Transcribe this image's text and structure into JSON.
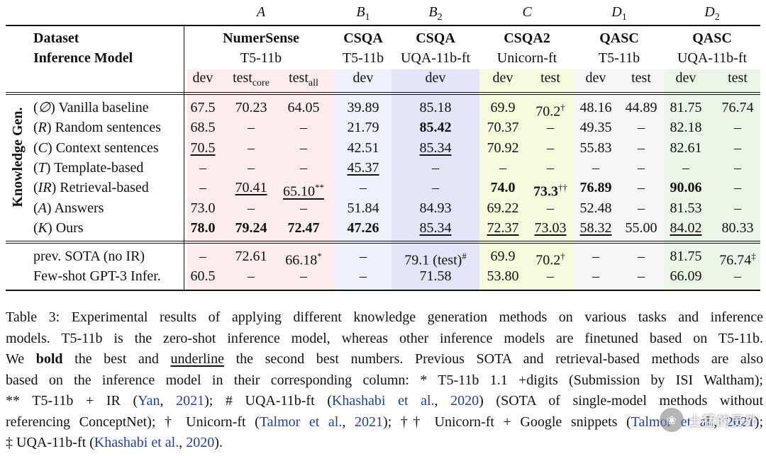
{
  "group_letters": [
    {
      "key": "A",
      "main": "A",
      "sub": ""
    },
    {
      "key": "B1",
      "main": "B",
      "sub": "1"
    },
    {
      "key": "B2",
      "main": "B",
      "sub": "2"
    },
    {
      "key": "C",
      "main": "C",
      "sub": ""
    },
    {
      "key": "D1",
      "main": "D",
      "sub": "1"
    },
    {
      "key": "D2",
      "main": "D",
      "sub": "2"
    }
  ],
  "header": {
    "dataset_label": "Dataset",
    "model_label": "Inference Model",
    "datasets": [
      "NumerSense",
      "CSQA",
      "CSQA",
      "CSQA2",
      "QASC",
      "QASC"
    ],
    "models": [
      "T5-11b",
      "T5-11b",
      "UQA-11b-ft",
      "Unicorn-ft",
      "T5-11b",
      "UQA-11b-ft"
    ],
    "splits": [
      {
        "main": "dev",
        "sub": ""
      },
      {
        "main": "test",
        "sub": "core"
      },
      {
        "main": "test",
        "sub": "all"
      },
      {
        "main": "dev",
        "sub": ""
      },
      {
        "main": "dev",
        "sub": ""
      },
      {
        "main": "dev",
        "sub": ""
      },
      {
        "main": "test",
        "sub": ""
      },
      {
        "main": "dev",
        "sub": ""
      },
      {
        "main": "test",
        "sub": ""
      },
      {
        "main": "dev",
        "sub": ""
      },
      {
        "main": "test",
        "sub": ""
      }
    ]
  },
  "side_label": "Knowledge Gen.",
  "knowledge_rows": [
    {
      "sym": "∅",
      "label": "Vanilla baseline",
      "cells": [
        "67.5",
        "70.23",
        "64.05",
        "39.89",
        "85.18",
        "69.9",
        "70.2",
        "48.16",
        "44.89",
        "81.75",
        "76.74"
      ],
      "sups": [
        "",
        "",
        "",
        "",
        "",
        "",
        "†",
        "",
        "",
        "",
        ""
      ]
    },
    {
      "sym": "R",
      "label": "Random sentences",
      "cells": [
        "68.5",
        "–",
        "–",
        "21.79",
        "85.42",
        "70.37",
        "–",
        "49.35",
        "–",
        "82.18",
        "–"
      ],
      "sups": [
        "",
        "",
        "",
        "",
        "",
        "",
        "",
        "",
        "",
        "",
        ""
      ]
    },
    {
      "sym": "C",
      "label": "Context sentences",
      "cells": [
        "70.5",
        "–",
        "–",
        "42.51",
        "85.34",
        "70.92",
        "–",
        "55.83",
        "–",
        "82.61",
        "–"
      ],
      "sups": [
        "",
        "",
        "",
        "",
        "",
        "",
        "",
        "",
        "",
        "",
        ""
      ]
    },
    {
      "sym": "T",
      "label": "Template-based",
      "cells": [
        "–",
        "–",
        "–",
        "45.37",
        "–",
        "–",
        "–",
        "–",
        "–",
        "–",
        "–"
      ],
      "sups": [
        "",
        "",
        "",
        "",
        "",
        "",
        "",
        "",
        "",
        "",
        ""
      ]
    },
    {
      "sym": "IR",
      "label": "Retrieval-based",
      "cells": [
        "–",
        "70.41",
        "65.10",
        "–",
        "–",
        "74.0",
        "73.3",
        "76.89",
        "–",
        "90.06",
        "–"
      ],
      "sups": [
        "",
        "",
        "**",
        "",
        "",
        "",
        "††",
        "",
        "",
        "",
        ""
      ]
    },
    {
      "sym": "A",
      "label": "Answers",
      "cells": [
        "73.0",
        "–",
        "–",
        "51.84",
        "84.93",
        "69.22",
        "–",
        "52.48",
        "–",
        "81.53",
        "–"
      ],
      "sups": [
        "",
        "",
        "",
        "",
        "",
        "",
        "",
        "",
        "",
        "",
        ""
      ]
    },
    {
      "sym": "K",
      "label": "Ours",
      "cells": [
        "78.0",
        "79.24",
        "72.47",
        "47.26",
        "85.34",
        "72.37",
        "73.03",
        "58.32",
        "55.00",
        "84.02",
        "80.33"
      ],
      "sups": [
        "",
        "",
        "",
        "",
        "",
        "",
        "",
        "",
        "",
        "",
        ""
      ]
    }
  ],
  "other_rows": [
    {
      "label": "prev. SOTA (no IR)",
      "cells": [
        "–",
        "72.61",
        "66.18",
        "–",
        "79.1 (test)",
        "69.9",
        "70.2",
        "–",
        "–",
        "81.75",
        "76.74"
      ],
      "sups": [
        "",
        "",
        "*",
        "",
        "#",
        "",
        "†",
        "",
        "",
        "",
        "‡"
      ]
    },
    {
      "label": "Few-shot GPT-3 Infer.",
      "cells": [
        "60.5",
        "–",
        "–",
        "–",
        "71.58",
        "53.80",
        "–",
        "–",
        "–",
        "66.09",
        "–"
      ],
      "sups": [
        "",
        "",
        "",
        "",
        "",
        "",
        "",
        "",
        "",
        "",
        ""
      ]
    }
  ],
  "caption": {
    "l1": "Table 3: Experimental results of applying different knowledge generation methods on various tasks and inference",
    "l2": "models. T5-11b is the zero-shot inference model, whereas other inference models are finetuned based on T5-11b.",
    "l3a": "We",
    "l3b": "bold",
    "l3c": "the best and",
    "l3d": "underline",
    "l3e": "the second best numbers.  Previous SOTA and retrieval-based methods are also",
    "l4": "based on the inference model in their corresponding column: * T5-11b 1.1 +digits (Submission by ISI Waltham);",
    "l5a": "** T5-11b + IR (",
    "l5b": "Yan",
    "l5c": ", ",
    "l5d": "2021",
    "l5e": "); # UQA-11b-ft (",
    "l5f": "Khashabi et al.",
    "l5g": ", ",
    "l5h": "2020",
    "l5i": ") (SOTA of single-model methods without",
    "l6a": "referencing ConceptNet); † Unicorn-ft (",
    "l6b": "Talmor et al.",
    "l6c": ", ",
    "l6d": "2021",
    "l6e": "); †† Unicorn-ft + Google snippets (",
    "l6f": "Talmor et al.",
    "l6g": ", ",
    "l6h": "2021",
    "l6i": ");",
    "l7a": "‡ UQA-11b-ft (",
    "l7b": "Khashabi et al.",
    "l7c": ", ",
    "l7d": "2020",
    "l7e": ")."
  },
  "watermark": {
    "text": "土猛的员外"
  },
  "colors": {
    "A": "#fcecec",
    "B1": "#eef0fb",
    "B2": "#e2e4f7",
    "C": "#f6fadc",
    "D1": "#f5f5f5",
    "D2": "#eaf5e8",
    "link": "#1f3fa8"
  }
}
